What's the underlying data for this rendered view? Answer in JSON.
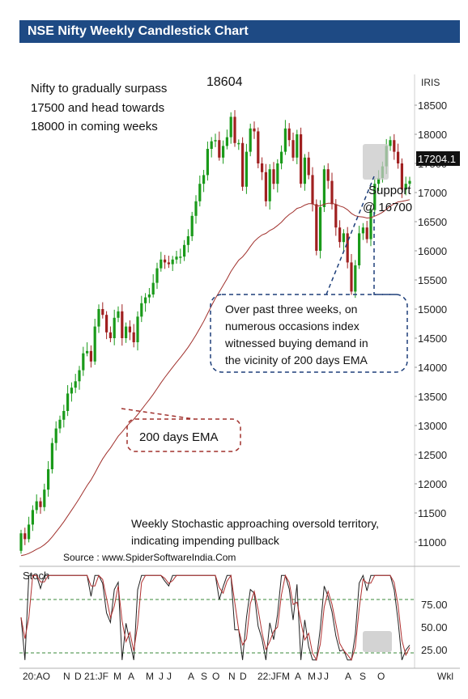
{
  "title": "NSE Nifty Weekly Candlestick Chart",
  "chart_data": {
    "type": "candlestick",
    "instrument": "IRIS",
    "last_price": "17204.1",
    "peak_label": "18604",
    "ema_label": "200 days EMA",
    "support_label_1": "Support",
    "support_label_2": "@ 16700",
    "note_top": [
      "Nifty to gradually surpass",
      "17500 and head towards",
      "18000 in coming weeks"
    ],
    "note_box": [
      "Over past three weeks, on",
      "numerous occasions index",
      "witnessed buying demand in",
      "the vicinity of 200 days EMA"
    ],
    "note_stoch": [
      "Weekly Stochastic approaching oversold territory,",
      "indicating impending pullback"
    ],
    "source": "Source : www.SpiderSoftwareIndia.Com",
    "price_axis": {
      "ticks": [
        "11000",
        "11500",
        "12000",
        "12500",
        "13000",
        "13500",
        "14000",
        "14500",
        "15000",
        "15500",
        "16000",
        "16500",
        "17000",
        "17500",
        "18000",
        "18500"
      ],
      "range": [
        10700,
        18900
      ]
    },
    "stoch_panel": {
      "title": "Stoch",
      "ticks": [
        "25.00",
        "50.00",
        "75.00"
      ],
      "levels": [
        20,
        80
      ]
    },
    "x_labels": [
      "20:AO",
      "N",
      "D",
      "21:JF",
      "M",
      "A",
      "M",
      "J",
      "J",
      "A",
      "S",
      "O",
      "N",
      "D",
      "22:JF",
      "M",
      "A",
      "M",
      "J",
      "J",
      "A",
      "S",
      "O"
    ],
    "x_unit": "Wkl",
    "closes": [
      11150,
      11050,
      11300,
      11550,
      11700,
      11600,
      11900,
      12250,
      12700,
      12950,
      13100,
      13250,
      13550,
      13650,
      13760,
      13950,
      14240,
      14280,
      14100,
      14700,
      15000,
      14900,
      14600,
      14500,
      14850,
      14960,
      14500,
      14700,
      14600,
      14430,
      14870,
      15100,
      15200,
      15250,
      15450,
      15700,
      15850,
      15800,
      15770,
      15850,
      15900,
      15900,
      16100,
      16250,
      16600,
      16850,
      17150,
      17300,
      17750,
      17880,
      17900,
      17600,
      17800,
      17950,
      18300,
      17850,
      17850,
      17100,
      17700,
      18100,
      18050,
      17500,
      17350,
      16850,
      17400,
      17150,
      17500,
      17700,
      18100,
      17900,
      17600,
      18000,
      17150,
      17600,
      17300,
      16800,
      16000,
      16750,
      17400,
      17200,
      16800,
      16400,
      16150,
      16300,
      15800,
      15300,
      15750,
      16300,
      16400,
      16200,
      16700,
      17150,
      17250,
      17450,
      17800,
      17900,
      17700,
      17500,
      17050,
      17150,
      17200
    ]
  }
}
